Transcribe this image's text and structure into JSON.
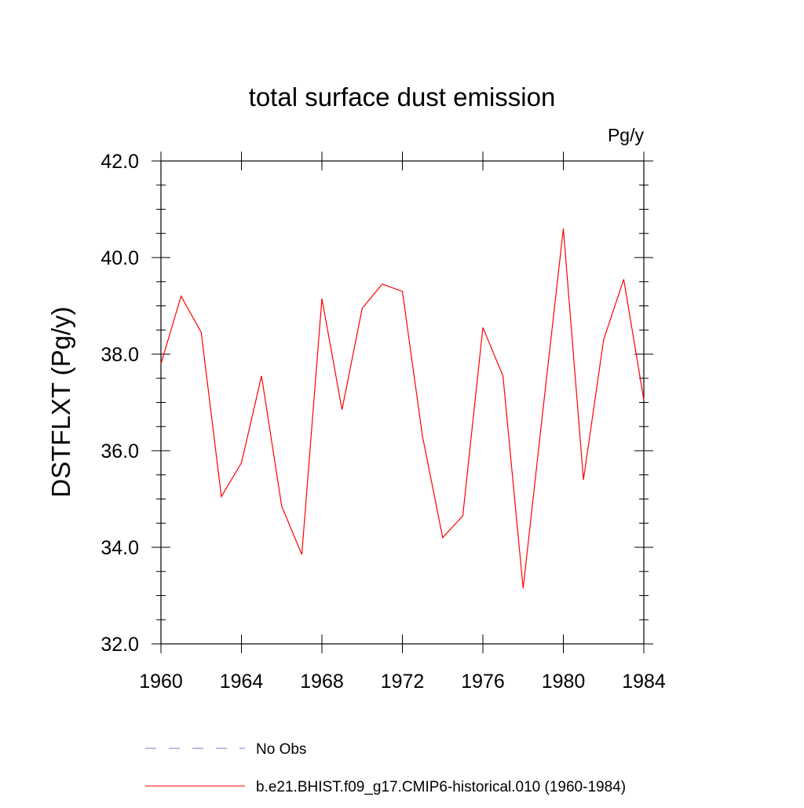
{
  "chart_data": {
    "type": "line",
    "title": "total surface dust emission",
    "units_label": "Pg/y",
    "ylabel": "DSTFLXT  (Pg/y)",
    "xlabel": "",
    "xlim": [
      1960,
      1984
    ],
    "ylim": [
      32.0,
      42.0
    ],
    "x_ticks": [
      1960,
      1964,
      1968,
      1972,
      1976,
      1980,
      1984
    ],
    "x_tick_labels": [
      "1960",
      "1964",
      "1968",
      "1972",
      "1976",
      "1980",
      "1984"
    ],
    "y_ticks": [
      32.0,
      34.0,
      36.0,
      38.0,
      40.0,
      42.0
    ],
    "y_tick_labels": [
      "32.0",
      "34.0",
      "36.0",
      "38.0",
      "40.0",
      "42.0"
    ],
    "grid": false,
    "legend_position": "bottom",
    "series": [
      {
        "name": "b.e21.BHIST.f09_g17.CMIP6-historical.010 (1960-1984)",
        "color": "#ff0000",
        "style": "solid",
        "x": [
          1960,
          1961,
          1962,
          1963,
          1964,
          1965,
          1966,
          1967,
          1968,
          1969,
          1970,
          1971,
          1972,
          1973,
          1974,
          1975,
          1976,
          1977,
          1978,
          1979,
          1980,
          1981,
          1982,
          1983,
          1984
        ],
        "values": [
          37.8,
          39.2,
          38.45,
          35.05,
          35.75,
          37.55,
          34.85,
          33.85,
          39.15,
          36.85,
          38.95,
          39.45,
          39.3,
          36.3,
          34.2,
          34.65,
          38.55,
          37.55,
          33.15,
          36.9,
          40.6,
          35.4,
          38.3,
          39.55,
          37.05
        ]
      }
    ],
    "legend": [
      {
        "label": "No Obs",
        "color": "#7b7bc8",
        "style": "dashed"
      },
      {
        "label": "b.e21.BHIST.f09_g17.CMIP6-historical.010 (1960-1984)",
        "color": "#ff0000",
        "style": "solid"
      }
    ]
  }
}
